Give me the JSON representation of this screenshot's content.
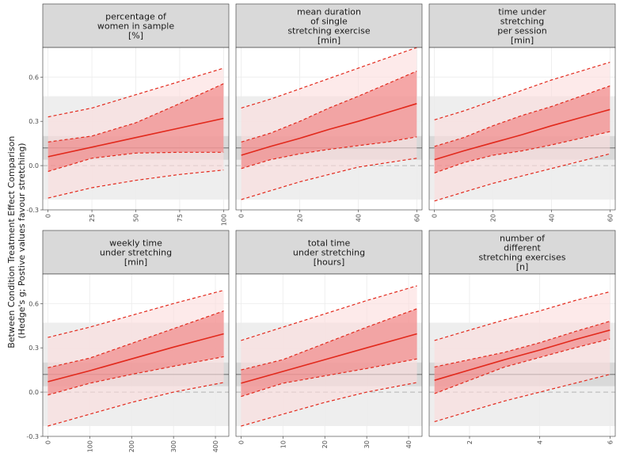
{
  "colors": {
    "line": "#e2291c",
    "ci_fill": "#f07a7a",
    "pi_fill": "#fcdcdc",
    "panel_bg": "#ffffff",
    "strip_bg": "#d9d9d9",
    "grid": "#ebebeb",
    "ref_band_outer": "#ececec",
    "ref_band_inner": "#d6d6d6",
    "ref_line": "#808080",
    "zero_line": "#b3b3b3"
  },
  "chart_data": {
    "type": "line",
    "ylabel_lines": [
      "Between Condition Treatment Effect Comparison",
      "(Hedge's g; Postive values favour stretching)"
    ],
    "ylim": [
      -0.3,
      0.8
    ],
    "yticks": [
      "0.6",
      "0.3",
      "0.0",
      "-0.3"
    ],
    "ytick_values": [
      0.6,
      0.3,
      0.0,
      -0.3
    ],
    "reference": {
      "pooled_estimate": 0.12,
      "ci": [
        0.04,
        0.2
      ],
      "prediction_interval": [
        -0.23,
        0.47
      ]
    },
    "panels": [
      {
        "title_lines": [
          "percentage of",
          "women in sample",
          "[%]"
        ],
        "xlim": [
          -3,
          103
        ],
        "xticks": [
          "0",
          "25",
          "50",
          "75",
          "100"
        ],
        "xtick_values": [
          0,
          25,
          50,
          75,
          100
        ],
        "x": [
          0,
          25,
          50,
          75,
          100
        ],
        "estimate": [
          0.06,
          0.125,
          0.19,
          0.255,
          0.32
        ],
        "ci_lower": [
          -0.04,
          0.05,
          0.085,
          0.09,
          0.09
        ],
        "ci_upper": [
          0.16,
          0.2,
          0.29,
          0.42,
          0.555
        ],
        "pi_lower": [
          -0.22,
          -0.15,
          -0.1,
          -0.06,
          -0.03
        ],
        "pi_upper": [
          0.33,
          0.39,
          0.48,
          0.57,
          0.66
        ]
      },
      {
        "title_lines": [
          "mean duration",
          "of single",
          "stretching exercise",
          "[min]"
        ],
        "xlim": [
          -1.8,
          61.8
        ],
        "xticks": [
          "0",
          "20",
          "40",
          "60"
        ],
        "xtick_values": [
          0,
          20,
          40,
          60
        ],
        "x": [
          0,
          10,
          20,
          30,
          40,
          50,
          60
        ],
        "estimate": [
          0.07,
          0.13,
          0.185,
          0.245,
          0.3,
          0.36,
          0.42
        ],
        "ci_lower": [
          -0.02,
          0.04,
          0.08,
          0.11,
          0.135,
          0.16,
          0.195
        ],
        "ci_upper": [
          0.16,
          0.22,
          0.3,
          0.39,
          0.47,
          0.555,
          0.64
        ],
        "pi_lower": [
          -0.23,
          -0.17,
          -0.11,
          -0.06,
          -0.01,
          0.02,
          0.05
        ],
        "pi_upper": [
          0.39,
          0.45,
          0.52,
          0.59,
          0.66,
          0.73,
          0.8
        ]
      },
      {
        "title_lines": [
          "time under",
          "stretching",
          "per session",
          "[min]"
        ],
        "xlim": [
          -1.8,
          61.8
        ],
        "xticks": [
          "0",
          "20",
          "40",
          "60"
        ],
        "xtick_values": [
          0,
          20,
          40,
          60
        ],
        "x": [
          0,
          10,
          20,
          30,
          40,
          50,
          60
        ],
        "estimate": [
          0.04,
          0.1,
          0.155,
          0.21,
          0.27,
          0.325,
          0.38
        ],
        "ci_lower": [
          -0.05,
          0.02,
          0.07,
          0.1,
          0.14,
          0.185,
          0.23
        ],
        "ci_upper": [
          0.13,
          0.19,
          0.27,
          0.34,
          0.4,
          0.47,
          0.54
        ],
        "pi_lower": [
          -0.24,
          -0.18,
          -0.12,
          -0.07,
          -0.02,
          0.03,
          0.08
        ],
        "pi_upper": [
          0.31,
          0.37,
          0.44,
          0.51,
          0.58,
          0.64,
          0.7
        ]
      },
      {
        "title_lines": [
          "weekly time",
          "under stretching",
          "[min]"
        ],
        "xlim": [
          -12,
          432
        ],
        "xticks": [
          "0",
          "100",
          "200",
          "300",
          "400"
        ],
        "xtick_values": [
          0,
          100,
          200,
          300,
          400
        ],
        "x": [
          0,
          100,
          200,
          300,
          420
        ],
        "estimate": [
          0.07,
          0.145,
          0.225,
          0.305,
          0.395
        ],
        "ci_lower": [
          -0.02,
          0.06,
          0.12,
          0.175,
          0.24
        ],
        "ci_upper": [
          0.165,
          0.23,
          0.33,
          0.43,
          0.55
        ],
        "pi_lower": [
          -0.23,
          -0.15,
          -0.07,
          0.0,
          0.065
        ],
        "pi_upper": [
          0.37,
          0.44,
          0.52,
          0.6,
          0.69
        ]
      },
      {
        "title_lines": [
          "total time",
          "under stretching",
          "[hours]"
        ],
        "xlim": [
          -1.2,
          43.2
        ],
        "xticks": [
          "0",
          "10",
          "20",
          "30",
          "40"
        ],
        "xtick_values": [
          0,
          10,
          20,
          30,
          40
        ],
        "x": [
          0,
          10,
          20,
          30,
          42
        ],
        "estimate": [
          0.06,
          0.14,
          0.22,
          0.3,
          0.395
        ],
        "ci_lower": [
          -0.03,
          0.06,
          0.11,
          0.16,
          0.225
        ],
        "ci_upper": [
          0.15,
          0.22,
          0.33,
          0.44,
          0.565
        ],
        "pi_lower": [
          -0.23,
          -0.15,
          -0.07,
          0.0,
          0.065
        ],
        "pi_upper": [
          0.35,
          0.44,
          0.53,
          0.62,
          0.72
        ]
      },
      {
        "title_lines": [
          "number of",
          "different",
          "stretching exercises",
          "[n]"
        ],
        "xlim": [
          0.85,
          6.15
        ],
        "xticks": [
          "2",
          "4",
          "6"
        ],
        "xtick_values": [
          2,
          4,
          6
        ],
        "x": [
          1,
          2,
          3,
          4,
          5,
          6
        ],
        "estimate": [
          0.08,
          0.15,
          0.22,
          0.285,
          0.355,
          0.42
        ],
        "ci_lower": [
          -0.01,
          0.08,
          0.17,
          0.235,
          0.3,
          0.36
        ],
        "ci_upper": [
          0.17,
          0.22,
          0.27,
          0.335,
          0.41,
          0.48
        ],
        "pi_lower": [
          -0.2,
          -0.13,
          -0.06,
          0.0,
          0.06,
          0.12
        ],
        "pi_upper": [
          0.35,
          0.42,
          0.49,
          0.55,
          0.62,
          0.68
        ]
      }
    ]
  }
}
